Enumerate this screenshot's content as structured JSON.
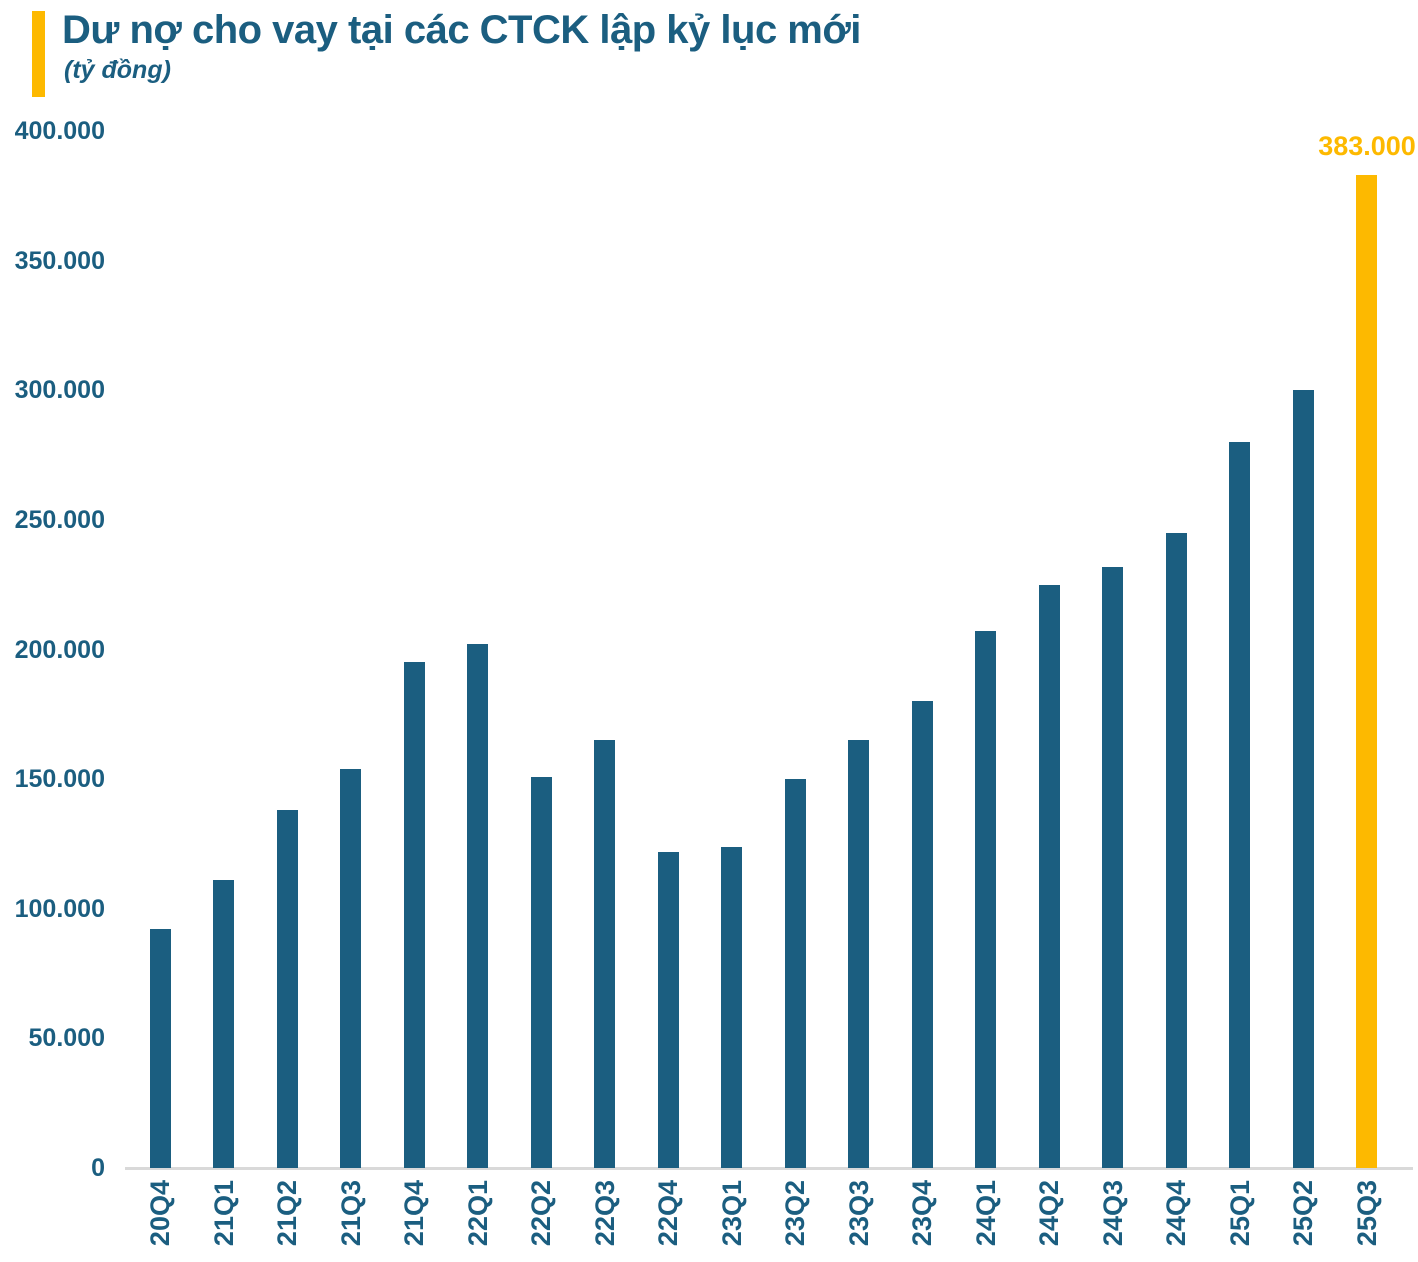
{
  "header": {
    "title": "Dư nợ cho vay tại các CTCK lập kỷ lục mới",
    "subtitle": "(tỷ đồng)"
  },
  "colors": {
    "bar": "#1B5E80",
    "highlight": "#FDB900",
    "text": "#1B5E80",
    "title": "#1B5E80",
    "accent": "#FDB900",
    "axis_line": "#D9D9D9",
    "annotation": "#FDB900",
    "background": "#FFFFFF"
  },
  "chart_data": {
    "type": "bar",
    "title": "Dư nợ cho vay tại các CTCK lập kỷ lục mới",
    "subtitle": "(tỷ đồng)",
    "unit": "tỷ đồng",
    "xlabel": "",
    "ylabel": "",
    "categories": [
      "20Q4",
      "21Q1",
      "21Q2",
      "21Q3",
      "21Q4",
      "22Q1",
      "22Q2",
      "22Q3",
      "22Q4",
      "23Q1",
      "23Q2",
      "23Q3",
      "23Q4",
      "24Q1",
      "24Q2",
      "24Q3",
      "24Q4",
      "25Q1",
      "25Q2",
      "25Q3"
    ],
    "values": [
      92000,
      111000,
      138000,
      154000,
      195000,
      202000,
      151000,
      165000,
      122000,
      124000,
      150000,
      165000,
      180000,
      207000,
      225000,
      232000,
      245000,
      280000,
      300000,
      383000
    ],
    "highlight_index": 19,
    "highlight_label": "383.000",
    "ylim": [
      0,
      400000
    ],
    "y_ticks": [
      {
        "label": "400.000",
        "value": 400000
      },
      {
        "label": "350.000",
        "value": 350000
      },
      {
        "label": "300.000",
        "value": 300000
      },
      {
        "label": "250.000",
        "value": 250000
      },
      {
        "label": "200.000",
        "value": 200000
      },
      {
        "label": "150.000",
        "value": 150000
      },
      {
        "label": "100.000",
        "value": 100000
      },
      {
        "label": "50.000",
        "value": 50000
      },
      {
        "label": "0",
        "value": 0
      }
    ],
    "grid": false,
    "legend": false
  }
}
